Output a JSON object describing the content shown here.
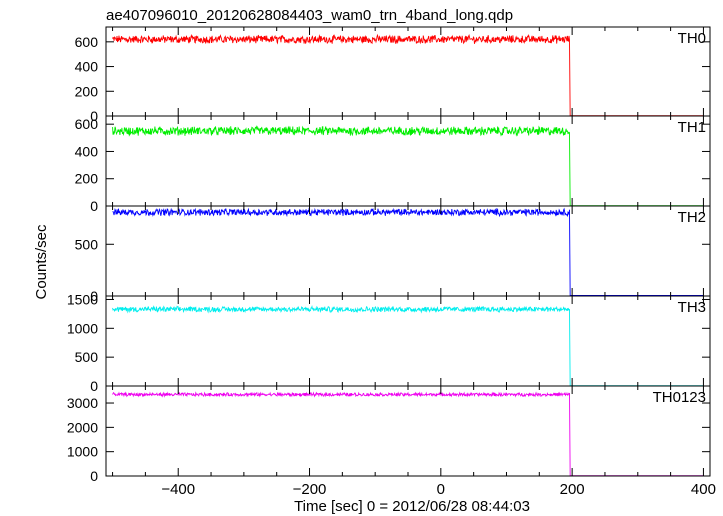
{
  "title": "ae407096010_20120628084403_wam0_trn_4band_long.qdp",
  "xlabel": "Time [sec] 0 = 2012/06/28 08:44:03",
  "ylabel": "Counts/sec",
  "x_ticks": [
    "−400",
    "−200",
    "0",
    "200",
    "400"
  ],
  "chart_data": [
    {
      "type": "line",
      "name": "TH0",
      "color": "#ff0000",
      "xlim": [
        -510,
        410
      ],
      "ylim": [
        0,
        720
      ],
      "y_ticks": [
        0,
        200,
        400,
        600
      ],
      "level_before": 620,
      "noise_amplitude": 28,
      "step_time": 196,
      "level_after": 2,
      "x_start": -500,
      "x_end": 400
    },
    {
      "type": "line",
      "name": "TH1",
      "color": "#00ee00",
      "xlim": [
        -510,
        410
      ],
      "ylim": [
        0,
        660
      ],
      "y_ticks": [
        0,
        200,
        400,
        600
      ],
      "level_before": 550,
      "noise_amplitude": 28,
      "step_time": 196,
      "level_after": 2,
      "x_start": -500,
      "x_end": 400
    },
    {
      "type": "line",
      "name": "TH2",
      "color": "#0000ff",
      "xlim": [
        -510,
        410
      ],
      "ylim": [
        0,
        870
      ],
      "y_ticks": [
        0,
        500
      ],
      "level_before": 810,
      "noise_amplitude": 28,
      "step_time": 196,
      "level_after": 5,
      "x_start": -500,
      "x_end": 400
    },
    {
      "type": "line",
      "name": "TH3",
      "color": "#00eeee",
      "xlim": [
        -510,
        410
      ],
      "ylim": [
        0,
        1560
      ],
      "y_ticks": [
        0,
        500,
        1000,
        1500
      ],
      "level_before": 1330,
      "noise_amplitude": 40,
      "step_time": 196,
      "level_after": 5,
      "x_start": -500,
      "x_end": 400
    },
    {
      "type": "line",
      "name": "TH0123",
      "color": "#ee00ee",
      "xlim": [
        -510,
        410
      ],
      "ylim": [
        0,
        3700
      ],
      "y_ticks": [
        0,
        1000,
        2000,
        3000
      ],
      "level_before": 3350,
      "noise_amplitude": 60,
      "step_time": 196,
      "level_after": 15,
      "x_start": -500,
      "x_end": 400
    }
  ]
}
